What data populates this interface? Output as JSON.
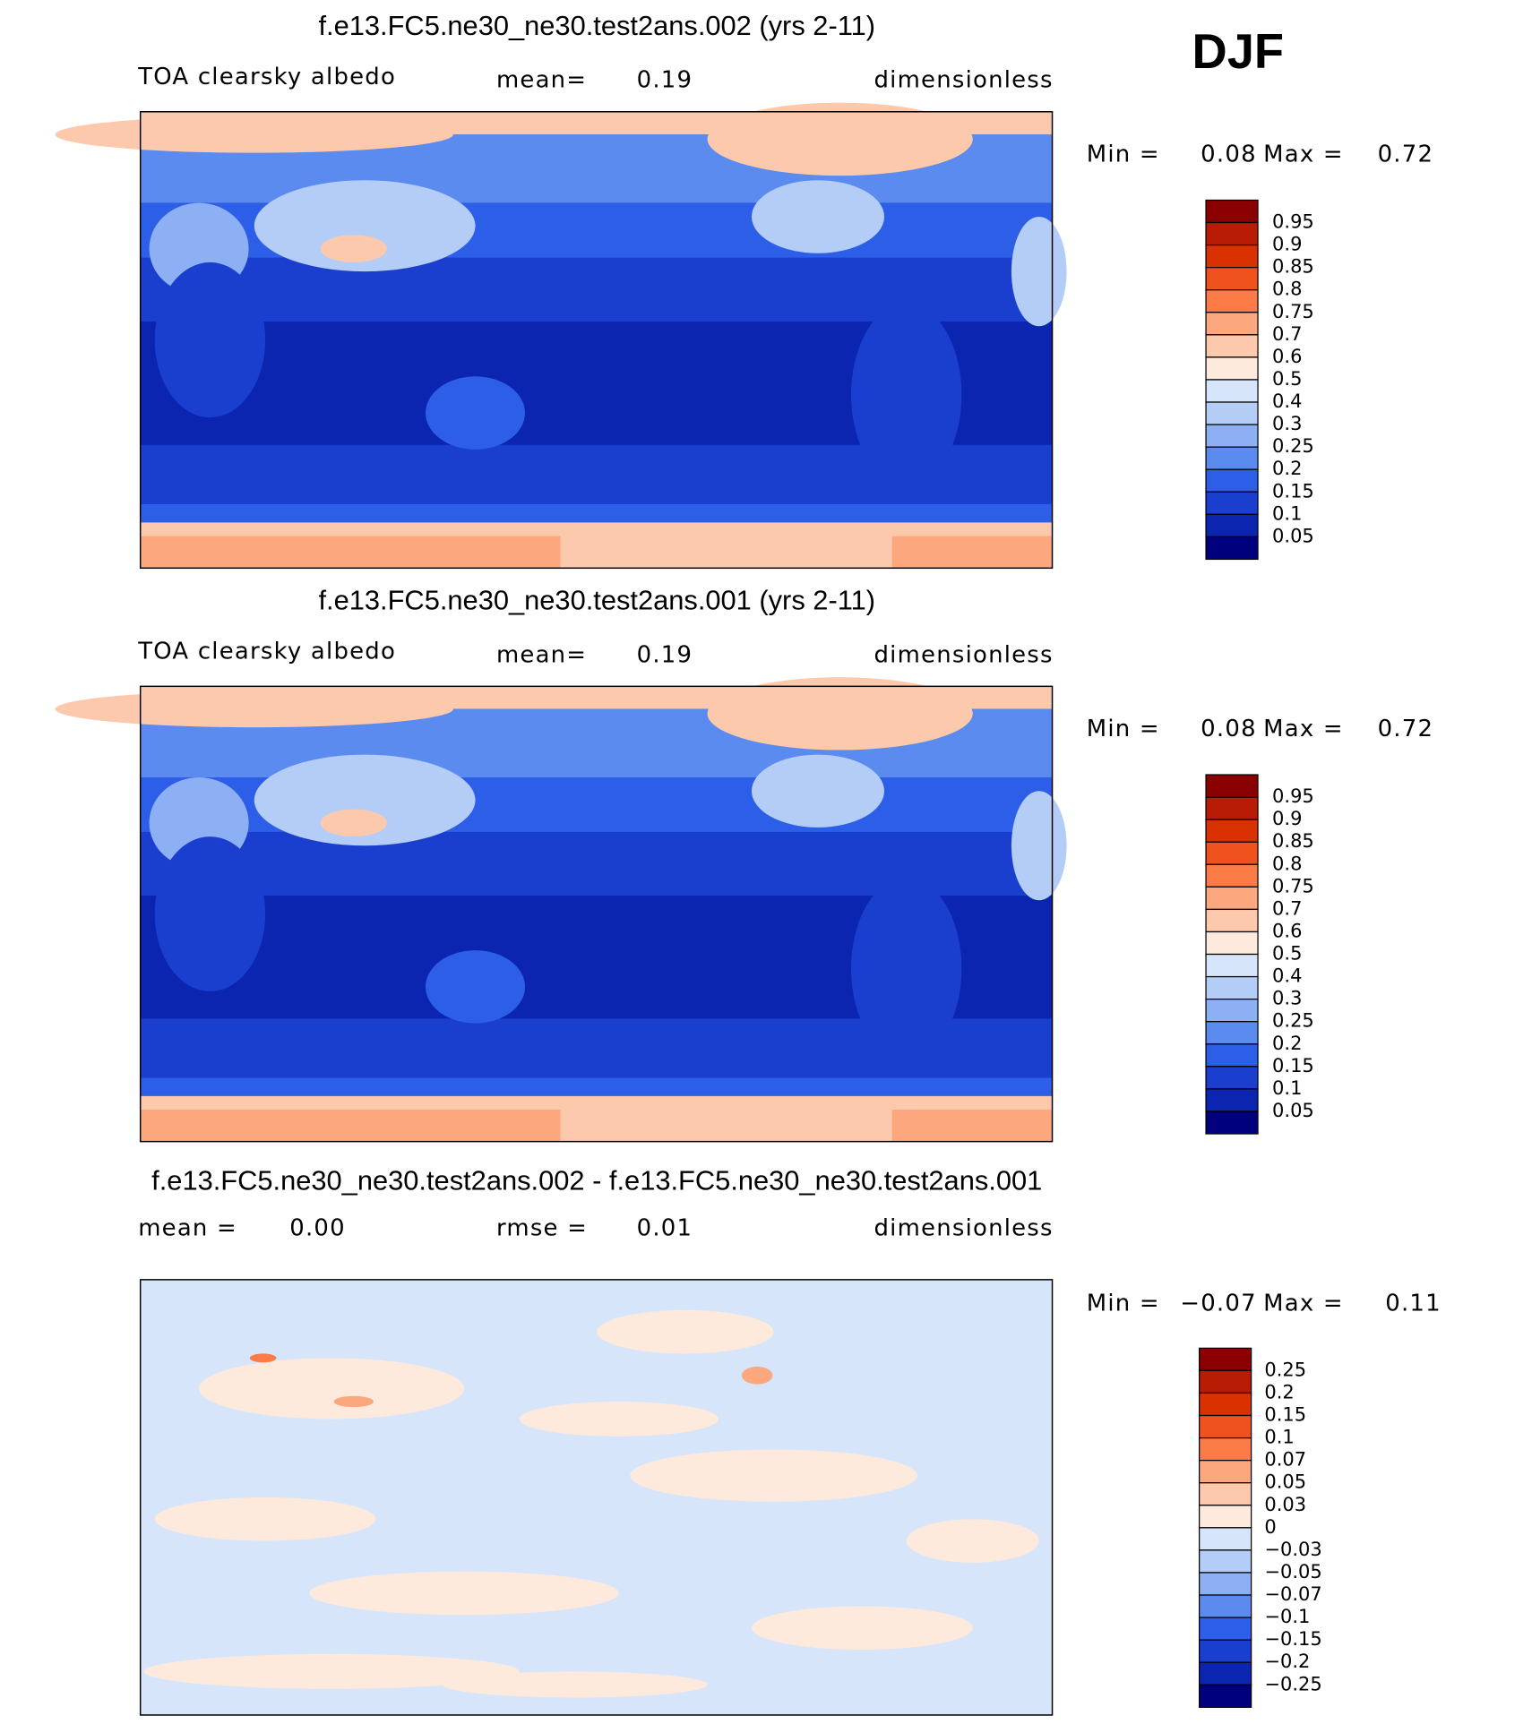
{
  "season": "DJF",
  "panels": [
    {
      "title": "f.e13.FC5.ne30_ne30.test2ans.002 (yrs 2-11)",
      "left_label": "TOA clearsky albedo",
      "stat1_label": "mean=",
      "stat1_value": "0.19",
      "units": "dimensionless",
      "min_label": "Min =",
      "min_value": "0.08",
      "max_label": "Max =",
      "max_value": "0.72",
      "kind": "albedo",
      "colorbar_labels": [
        "0.95",
        "0.9",
        "0.85",
        "0.8",
        "0.75",
        "0.7",
        "0.6",
        "0.5",
        "0.4",
        "0.3",
        "0.25",
        "0.2",
        "0.15",
        "0.1",
        "0.05"
      ],
      "colorbar_colors": [
        "#8b0000",
        "#b81c04",
        "#d93200",
        "#f0521d",
        "#fb7b46",
        "#fca77e",
        "#fdc9ad",
        "#fdeadc",
        "#d6e5fa",
        "#b3cdf6",
        "#8cb0f3",
        "#5b8bef",
        "#2d5ee8",
        "#1a3fcf",
        "#0b25b0",
        "#00007f"
      ]
    },
    {
      "title": "f.e13.FC5.ne30_ne30.test2ans.001 (yrs 2-11)",
      "left_label": "TOA clearsky albedo",
      "stat1_label": "mean=",
      "stat1_value": "0.19",
      "units": "dimensionless",
      "min_label": "Min =",
      "min_value": "0.08",
      "max_label": "Max =",
      "max_value": "0.72",
      "kind": "albedo",
      "colorbar_labels": [
        "0.95",
        "0.9",
        "0.85",
        "0.8",
        "0.75",
        "0.7",
        "0.6",
        "0.5",
        "0.4",
        "0.3",
        "0.25",
        "0.2",
        "0.15",
        "0.1",
        "0.05"
      ],
      "colorbar_colors": [
        "#8b0000",
        "#b81c04",
        "#d93200",
        "#f0521d",
        "#fb7b46",
        "#fca77e",
        "#fdc9ad",
        "#fdeadc",
        "#d6e5fa",
        "#b3cdf6",
        "#8cb0f3",
        "#5b8bef",
        "#2d5ee8",
        "#1a3fcf",
        "#0b25b0",
        "#00007f"
      ]
    },
    {
      "title": "f.e13.FC5.ne30_ne30.test2ans.002 - f.e13.FC5.ne30_ne30.test2ans.001",
      "left_label": "mean =",
      "left_value": "0.00",
      "stat1_label": "rmse =",
      "stat1_value": "0.01",
      "units": "dimensionless",
      "min_label": "Min =",
      "min_value": "−0.07",
      "max_label": "Max =",
      "max_value": "0.11",
      "kind": "diff",
      "colorbar_labels": [
        "0.25",
        "0.2",
        "0.15",
        "0.1",
        "0.07",
        "0.05",
        "0.03",
        "0",
        "−0.03",
        "−0.05",
        "−0.07",
        "−0.1",
        "−0.15",
        "−0.2",
        "−0.25"
      ],
      "colorbar_colors": [
        "#8b0000",
        "#b81c04",
        "#d93200",
        "#f0521d",
        "#fb7b46",
        "#fca77e",
        "#fdc9ad",
        "#fdeadc",
        "#d6e5fa",
        "#b3cdf6",
        "#8cb0f3",
        "#5b8bef",
        "#2d5ee8",
        "#1a3fcf",
        "#0b25b0",
        "#00007f"
      ]
    }
  ]
}
